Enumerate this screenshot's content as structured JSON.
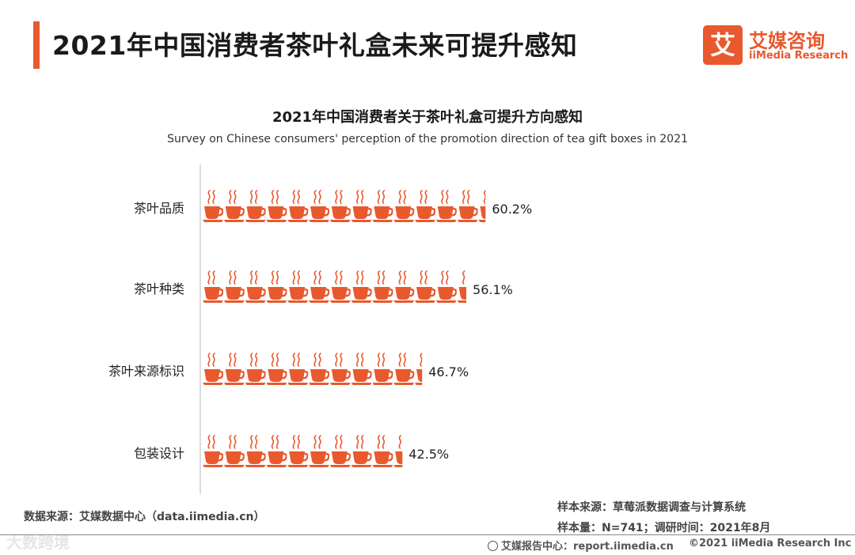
{
  "page": {
    "title": "2021年中国消费者茶叶礼盒未来可提升感知"
  },
  "logo": {
    "mark": "艾",
    "name_cn": "艾媒咨询",
    "name_en": "iiMedia Research"
  },
  "chart_data": {
    "type": "bar",
    "orientation": "horizontal",
    "title": "2021年中国消费者关于茶叶礼盒可提升方向感知",
    "subtitle": "Survey on Chinese consumers' perception of the promotion direction of tea gift boxes in 2021",
    "categories": [
      "茶叶品质",
      "茶叶种类",
      "茶叶来源标识",
      "包装设计"
    ],
    "values": [
      60.2,
      56.1,
      46.7,
      42.5
    ],
    "value_labels": [
      "60.2%",
      "56.1%",
      "46.7%",
      "42.5%"
    ],
    "unit": "%",
    "xlim": [
      0,
      100
    ],
    "grid": false,
    "legend": "none",
    "mark_icon": "teacup-icon",
    "bar_color": "#e8592e"
  },
  "sources": {
    "data_source": "数据来源：艾媒数据中心（data.iimedia.cn）",
    "sample_source": "样本来源：草莓派数据调查与计算系统",
    "sample_size": "样本量：N=741；调研时间：2021年8月"
  },
  "footer": {
    "watermark": "大数跨境",
    "report_center": "艾媒报告中心：report.iimedia.cn",
    "copyright": "©2021  iiMedia Research  Inc"
  }
}
